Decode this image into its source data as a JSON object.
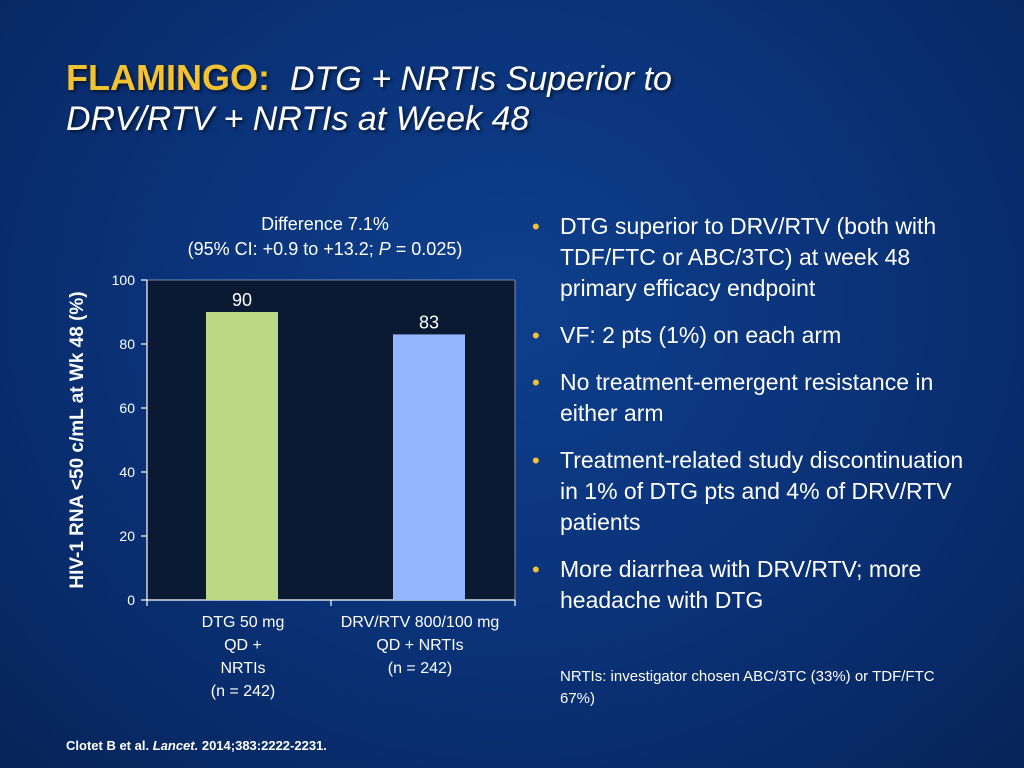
{
  "title": {
    "brand": "FLAMINGO:",
    "subtitle_line1": "DTG + NRTIs Superior to",
    "subtitle_line2": "DRV/RTV + NRTIs at Week 48"
  },
  "difference": {
    "line1": "Difference 7.1%",
    "line2": "(95% CI: +0.9 to +13.2; P = 0.025)"
  },
  "chart_data": {
    "type": "bar",
    "ylabel": "HIV-1 RNA <50 c/mL at Wk 48 (%)",
    "ylim": [
      0,
      100
    ],
    "yticks": [
      0,
      20,
      40,
      60,
      80,
      100
    ],
    "categories": [
      [
        "DTG 50 mg",
        "QD +",
        "NRTIs",
        "(n = 242)"
      ],
      [
        "DRV/RTV 800/100 mg",
        "QD + NRTIs",
        "(n = 242)"
      ]
    ],
    "values": [
      90,
      83
    ],
    "data_labels": [
      "90",
      "83"
    ],
    "colors": [
      "#bcd887",
      "#93b6ff"
    ],
    "grid": false
  },
  "bullets": [
    "DTG superior to DRV/RTV (both with TDF/FTC or ABC/3TC) at week 48 primary efficacy endpoint",
    "VF: 2 pts (1%) on each arm",
    "No treatment-emergent resistance in either arm",
    "Treatment-related study discontinuation in 1% of DTG pts and 4% of DRV/RTV patients",
    "More diarrhea with DRV/RTV; more headache with DTG"
  ],
  "footnote": "NRTIs: investigator chosen ABC/3TC (33%) or TDF/FTC 67%)",
  "reference": {
    "authors": "Clotet B et al.",
    "journal": "Lancet.",
    "citation": "2014;383:2222-2231."
  },
  "colors": {
    "title_brand": "#f2c230",
    "bullet_marker": "#f2c230",
    "plot_background": "#0b1a33"
  }
}
